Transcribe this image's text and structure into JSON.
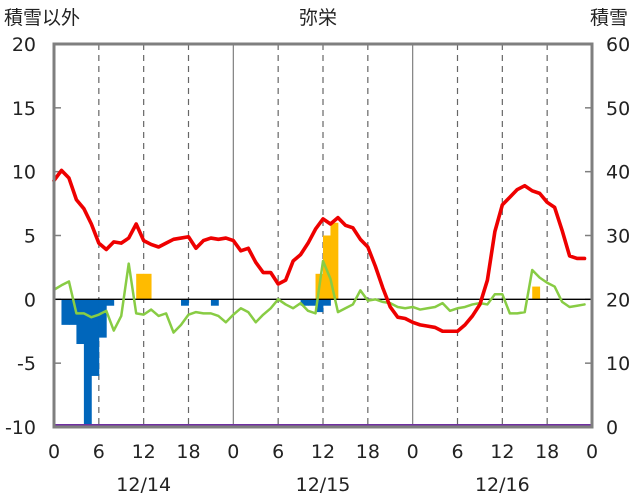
{
  "chart_data": {
    "type": "bar+line",
    "title": "弥栄",
    "left_axis_label": "積雪以外",
    "right_axis_label": "積雪",
    "left_ylim": [
      -10,
      20
    ],
    "right_ylim": [
      0,
      60
    ],
    "left_ticks": [
      "20",
      "15",
      "10",
      "5",
      "0",
      "-5",
      "-10"
    ],
    "right_ticks": [
      "60",
      "50",
      "40",
      "30",
      "20",
      "10",
      "0"
    ],
    "x_tick_labels": [
      "0",
      "6",
      "12",
      "18",
      "0",
      "6",
      "12",
      "18",
      "0",
      "6",
      "12",
      "18",
      "0"
    ],
    "date_labels": [
      "12/14",
      "12/15",
      "12/16"
    ],
    "grid": "dashed vertical lines at 6-hour marks, solid at midnight",
    "colors": {
      "temperature": "#ee0000",
      "snow_depth": "#88cc44",
      "precipitation": "#ffbb00",
      "temp_change": "#0066bb",
      "baseline": "#7030a0",
      "zero_line": "#000000",
      "frame": "#7f7f7f"
    },
    "series": [
      {
        "key": "temperature",
        "type": "line",
        "axis": "left",
        "values": [
          9.3,
          10.1,
          9.5,
          7.8,
          7.1,
          5.9,
          4.4,
          3.9,
          4.5,
          4.4,
          4.8,
          5.9,
          4.6,
          4.3,
          4.1,
          4.4,
          4.7,
          4.8,
          4.9,
          4.0,
          4.6,
          4.8,
          4.7,
          4.8,
          4.6,
          3.8,
          4.0,
          2.9,
          2.1,
          2.1,
          1.2,
          1.5,
          3.0,
          3.5,
          4.4,
          5.5,
          6.3,
          5.9,
          6.4,
          5.8,
          5.6,
          4.7,
          4.1,
          2.6,
          0.9,
          -0.6,
          -1.4,
          -1.5,
          -1.8,
          -2.0,
          -2.1,
          -2.2,
          -2.5,
          -2.5,
          -2.5,
          -2.0,
          -1.3,
          -0.4,
          1.5,
          5.3,
          7.4,
          8.0,
          8.6,
          8.9,
          8.5,
          8.3,
          7.6,
          7.2,
          5.4,
          3.4,
          3.2,
          3.2
        ]
      },
      {
        "key": "snow_depth",
        "type": "line",
        "axis": "right",
        "values": [
          21.5,
          22.2,
          22.8,
          17.8,
          17.8,
          17.2,
          17.6,
          18.2,
          15.1,
          17.4,
          25.6,
          17.8,
          17.6,
          18.4,
          17.4,
          17.8,
          14.8,
          16.0,
          17.6,
          18.0,
          17.8,
          17.8,
          17.4,
          16.4,
          17.6,
          18.6,
          18.0,
          16.4,
          17.6,
          18.6,
          20.0,
          19.2,
          18.6,
          19.4,
          18.2,
          17.8,
          26.0,
          23.2,
          18.0,
          18.6,
          19.2,
          21.4,
          19.8,
          20.0,
          19.6,
          19.4,
          18.8,
          18.6,
          18.8,
          18.4,
          18.6,
          18.8,
          19.4,
          18.2,
          18.6,
          18.8,
          19.2,
          19.4,
          19.2,
          20.8,
          20.8,
          17.8,
          17.8,
          18.0,
          24.6,
          23.4,
          22.6,
          22.0,
          19.6,
          18.8,
          19.0,
          19.2
        ]
      },
      {
        "key": "precipitation",
        "type": "bar",
        "axis": "left",
        "values": [
          0,
          0,
          0,
          0,
          0,
          0,
          0,
          0,
          0,
          0,
          0,
          2.0,
          2.0,
          0,
          0,
          0,
          0,
          0,
          0,
          0,
          0,
          0,
          0,
          0,
          0,
          0,
          0,
          0,
          0,
          0,
          0,
          0,
          0,
          0,
          0,
          2.0,
          5.0,
          6.0,
          0,
          0,
          0,
          0,
          0,
          0,
          0,
          0,
          0,
          0,
          0,
          0,
          0,
          0,
          0,
          0,
          0,
          0,
          0,
          0,
          0,
          0,
          0,
          0,
          0,
          0,
          1.0,
          0,
          0,
          0,
          0,
          0,
          0,
          0
        ]
      },
      {
        "key": "temp_change",
        "type": "bar",
        "axis": "left",
        "values": [
          0,
          -2.0,
          -2.0,
          -3.5,
          -10.0,
          -6.0,
          -3.0,
          -0.5,
          0,
          0,
          0,
          0,
          0,
          0,
          0,
          0,
          0,
          -0.5,
          0,
          0,
          0,
          -0.5,
          0,
          0,
          0,
          0,
          0,
          0,
          0,
          0,
          0,
          0,
          0,
          -0.5,
          -0.5,
          -1.0,
          -0.5,
          0,
          0,
          0,
          0,
          0,
          0,
          0,
          0,
          0,
          0,
          0,
          0,
          0,
          0,
          0,
          0,
          0,
          0,
          0,
          0,
          0,
          0,
          0,
          0,
          0,
          0,
          0,
          0,
          0,
          0,
          0,
          0,
          0,
          0,
          0
        ]
      }
    ]
  }
}
